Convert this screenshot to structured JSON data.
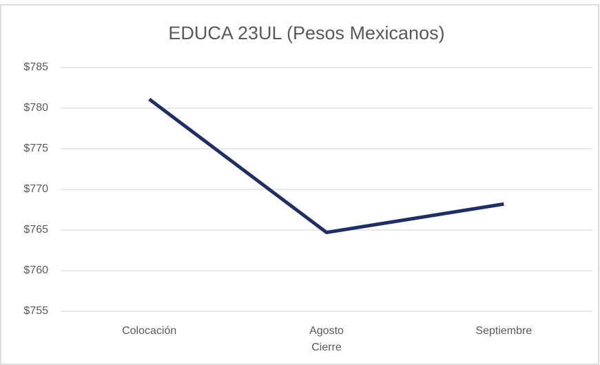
{
  "chart_data": {
    "type": "line",
    "title": "EDUCA 23UL (Pesos Mexicanos)",
    "categories": [
      "Colocación",
      "Agosto Cierre",
      "Septiembre"
    ],
    "series": [
      {
        "name": "EDUCA 23UL",
        "color": "#1f2f63",
        "values": [
          781.1,
          764.7,
          768.2
        ]
      }
    ],
    "ylim": [
      755,
      785
    ],
    "yticks": [
      {
        "value": 755,
        "label": "$755"
      },
      {
        "value": 760,
        "label": "$760"
      },
      {
        "value": 765,
        "label": "$765"
      },
      {
        "value": 770,
        "label": "$770"
      },
      {
        "value": 775,
        "label": "$775"
      },
      {
        "value": 780,
        "label": "$780"
      },
      {
        "value": 785,
        "label": "$785"
      }
    ],
    "grid": true,
    "legend": false
  }
}
